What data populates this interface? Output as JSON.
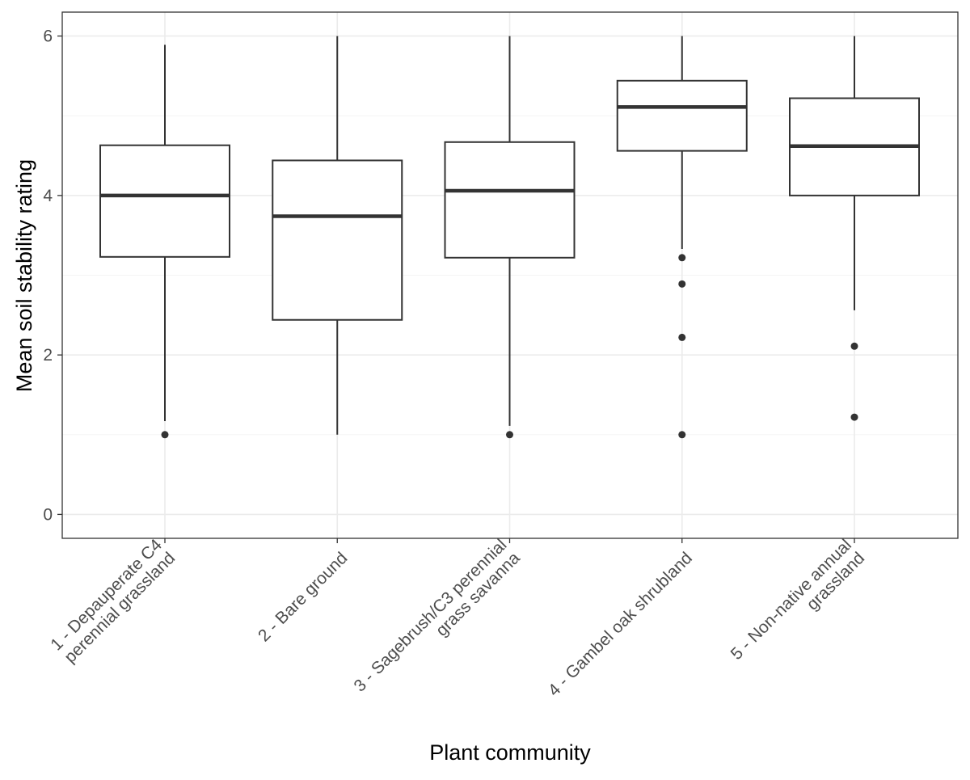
{
  "chart_data": {
    "type": "boxplot",
    "title": "",
    "xlabel": "Plant community",
    "ylabel": "Mean soil stability rating",
    "ylim": [
      -0.3,
      6.3
    ],
    "yticks": [
      0,
      2,
      4,
      6
    ],
    "ytick_labels": [
      "0",
      "2",
      "4",
      "6"
    ],
    "grid": true,
    "theme": "black-and-white",
    "colors": {
      "box_fill": "#ffffff",
      "stroke": "#333333",
      "grid_major": "#ebebeb",
      "grid_minor": "#f5f5f5",
      "panel_border": "#333333",
      "tick_label": "#4d4d4d",
      "axis_title": "#000000"
    },
    "categories": [
      [
        "1 - Depauperate C4",
        "perennial grassland"
      ],
      [
        "2 - Bare ground"
      ],
      [
        "3 - Sagebrush/C3 perennial",
        "grass savanna"
      ],
      [
        "4 - Gambel oak shrubland"
      ],
      [
        "5 - Non-native annual",
        "grassland"
      ]
    ],
    "boxes": [
      {
        "whisker_low": 1.17,
        "q1": 3.23,
        "median": 4.0,
        "q3": 4.63,
        "whisker_high": 5.89,
        "outliers": [
          1.0
        ]
      },
      {
        "whisker_low": 1.0,
        "q1": 2.44,
        "median": 3.74,
        "q3": 4.44,
        "whisker_high": 6.0,
        "outliers": []
      },
      {
        "whisker_low": 1.11,
        "q1": 3.22,
        "median": 4.06,
        "q3": 4.67,
        "whisker_high": 6.0,
        "outliers": [
          1.0
        ]
      },
      {
        "whisker_low": 3.33,
        "q1": 4.56,
        "median": 5.11,
        "q3": 5.44,
        "whisker_high": 6.0,
        "outliers": [
          3.22,
          2.89,
          2.22,
          1.0
        ]
      },
      {
        "whisker_low": 2.56,
        "q1": 4.0,
        "median": 4.62,
        "q3": 5.22,
        "whisker_high": 6.0,
        "outliers": [
          2.11,
          1.22
        ]
      }
    ]
  }
}
